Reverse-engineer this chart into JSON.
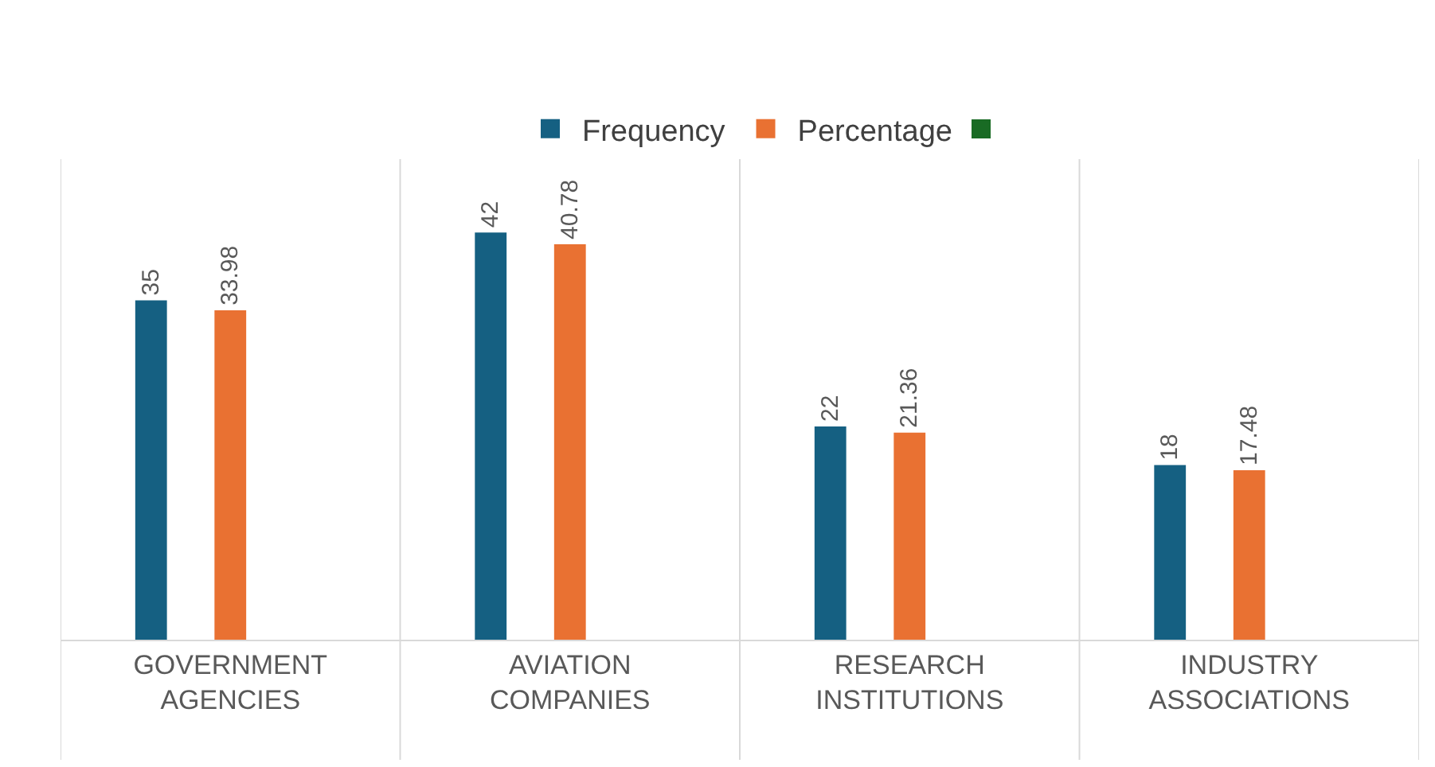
{
  "chart_data": {
    "type": "bar",
    "categories": [
      "GOVERNMENT AGENCIES",
      "AVIATION COMPANIES",
      "RESEARCH INSTITUTIONS",
      "INDUSTRY ASSOCIATIONS"
    ],
    "series": [
      {
        "name": "Frequency",
        "color": "#156082",
        "values": [
          35,
          42,
          22,
          18
        ]
      },
      {
        "name": "Percentage",
        "color": "#e97132",
        "values": [
          33.98,
          40.78,
          21.36,
          17.48
        ]
      },
      {
        "color": "#196b24",
        "values": [
          null,
          null,
          null,
          null
        ]
      }
    ],
    "data_labels": true,
    "grid": "x",
    "legend": "top"
  }
}
